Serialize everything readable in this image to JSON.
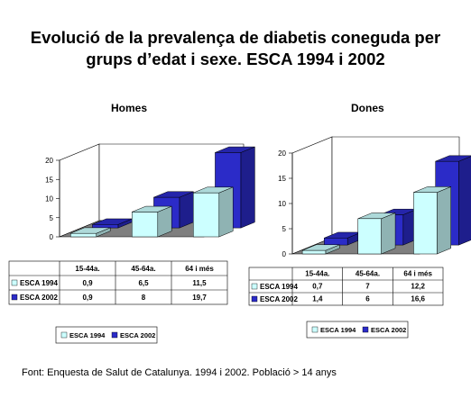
{
  "title_line1": "Evolució de la prevalença de diabetis coneguda per",
  "title_line2": "grups d’edat i sexe. ESCA 1994 i 2002",
  "source": "Font: Enquesta de Salut de Catalunya. 1994 i 2002. Població > 14 anys",
  "colors": {
    "esca1994": "#CCFFFF",
    "esca2002": "#2B2BC8",
    "floor": "#7F7F7F",
    "wall": "#FFFFFF"
  },
  "chart_data": [
    {
      "type": "bar",
      "title": "Homes",
      "categories": [
        "15-44a.",
        "45-64a.",
        "64 i més"
      ],
      "series": [
        {
          "name": "ESCA 1994",
          "values": [
            0.9,
            6.5,
            11.5
          ],
          "labels": [
            "0,9",
            "6,5",
            "11,5"
          ]
        },
        {
          "name": "ESCA 2002",
          "values": [
            0.9,
            8,
            19.7
          ],
          "labels": [
            "0,9",
            "8",
            "19,7"
          ]
        }
      ],
      "yticks": [
        "0",
        "5",
        "10",
        "15",
        "20"
      ],
      "ylim": [
        0,
        20
      ],
      "legend": "bottom"
    },
    {
      "type": "bar",
      "title": "Dones",
      "categories": [
        "15-44a.",
        "45-64a.",
        "64 i més"
      ],
      "series": [
        {
          "name": "ESCA 1994",
          "values": [
            0.7,
            7,
            12.2
          ],
          "labels": [
            "0,7",
            "7",
            "12,2"
          ]
        },
        {
          "name": "ESCA 2002",
          "values": [
            1.4,
            6,
            16.6
          ],
          "labels": [
            "1,4",
            "6",
            "16,6"
          ]
        }
      ],
      "yticks": [
        "0",
        "5",
        "10",
        "15",
        "20"
      ],
      "ylim": [
        0,
        20
      ],
      "legend": "bottom"
    }
  ]
}
